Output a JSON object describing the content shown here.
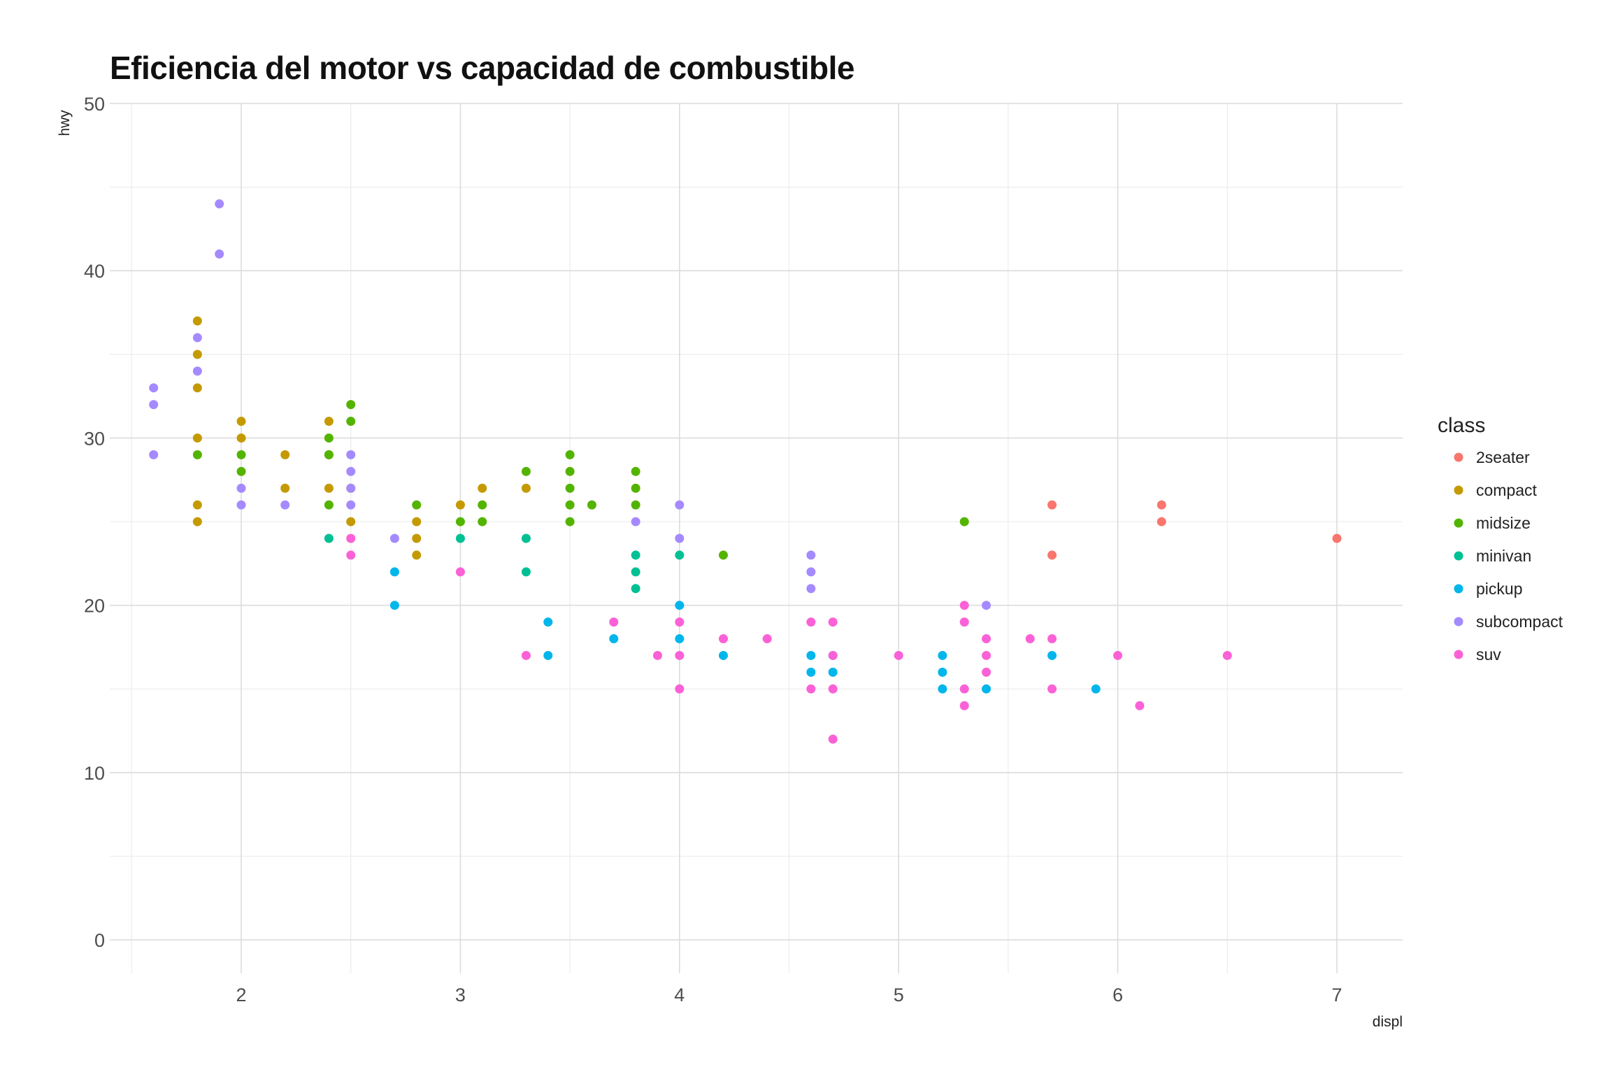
{
  "chart_data": {
    "type": "scatter",
    "title": "Eficiencia del motor vs capacidad de combustible",
    "xlabel": "displ",
    "ylabel": "hwy",
    "xlim": [
      1.4,
      7.3
    ],
    "ylim": [
      -2,
      50
    ],
    "x_ticks": [
      2,
      3,
      4,
      5,
      6,
      7
    ],
    "y_ticks": [
      0,
      10,
      20,
      30,
      40,
      50
    ],
    "grid": true,
    "legend": {
      "title": "class",
      "position": "right"
    },
    "series": [
      {
        "name": "2seater",
        "color": "#F8766D",
        "points": [
          [
            5.7,
            26
          ],
          [
            5.7,
            23
          ],
          [
            6.2,
            26
          ],
          [
            6.2,
            25
          ],
          [
            7.0,
            24
          ]
        ]
      },
      {
        "name": "compact",
        "color": "#C49A00",
        "points": [
          [
            1.8,
            37
          ],
          [
            1.8,
            35
          ],
          [
            1.8,
            33
          ],
          [
            1.8,
            30
          ],
          [
            1.8,
            26
          ],
          [
            1.8,
            25
          ],
          [
            2.0,
            31
          ],
          [
            2.0,
            30
          ],
          [
            2.2,
            29
          ],
          [
            2.2,
            27
          ],
          [
            2.4,
            31
          ],
          [
            2.4,
            29
          ],
          [
            2.4,
            27
          ],
          [
            2.5,
            27
          ],
          [
            2.5,
            25
          ],
          [
            2.8,
            25
          ],
          [
            2.8,
            24
          ],
          [
            2.8,
            23
          ],
          [
            3.0,
            26
          ],
          [
            3.1,
            27
          ],
          [
            3.3,
            27
          ]
        ]
      },
      {
        "name": "midsize",
        "color": "#53B400",
        "points": [
          [
            1.8,
            29
          ],
          [
            2.0,
            29
          ],
          [
            2.0,
            28
          ],
          [
            2.4,
            30
          ],
          [
            2.4,
            29
          ],
          [
            2.4,
            26
          ],
          [
            2.5,
            32
          ],
          [
            2.5,
            31
          ],
          [
            2.8,
            26
          ],
          [
            3.0,
            25
          ],
          [
            3.1,
            26
          ],
          [
            3.1,
            25
          ],
          [
            3.3,
            28
          ],
          [
            3.5,
            29
          ],
          [
            3.5,
            28
          ],
          [
            3.5,
            27
          ],
          [
            3.5,
            26
          ],
          [
            3.5,
            25
          ],
          [
            3.6,
            26
          ],
          [
            3.8,
            28
          ],
          [
            3.8,
            27
          ],
          [
            3.8,
            26
          ],
          [
            4.2,
            23
          ],
          [
            5.3,
            25
          ]
        ]
      },
      {
        "name": "minivan",
        "color": "#00C094",
        "points": [
          [
            2.4,
            24
          ],
          [
            3.0,
            24
          ],
          [
            3.3,
            24
          ],
          [
            3.3,
            22
          ],
          [
            3.8,
            23
          ],
          [
            3.8,
            22
          ],
          [
            3.8,
            21
          ],
          [
            4.0,
            23
          ]
        ]
      },
      {
        "name": "pickup",
        "color": "#00B6EB",
        "points": [
          [
            2.7,
            22
          ],
          [
            2.7,
            20
          ],
          [
            3.4,
            19
          ],
          [
            3.4,
            17
          ],
          [
            3.7,
            18
          ],
          [
            4.0,
            20
          ],
          [
            4.0,
            18
          ],
          [
            4.2,
            17
          ],
          [
            4.6,
            17
          ],
          [
            4.6,
            16
          ],
          [
            4.7,
            17
          ],
          [
            4.7,
            16
          ],
          [
            5.2,
            17
          ],
          [
            5.2,
            16
          ],
          [
            5.2,
            15
          ],
          [
            5.4,
            15
          ],
          [
            5.7,
            17
          ],
          [
            5.9,
            15
          ]
        ]
      },
      {
        "name": "subcompact",
        "color": "#A58AFF",
        "points": [
          [
            1.6,
            33
          ],
          [
            1.6,
            32
          ],
          [
            1.6,
            29
          ],
          [
            1.8,
            36
          ],
          [
            1.8,
            34
          ],
          [
            1.9,
            44
          ],
          [
            1.9,
            41
          ],
          [
            2.0,
            27
          ],
          [
            2.0,
            26
          ],
          [
            2.2,
            26
          ],
          [
            2.5,
            29
          ],
          [
            2.5,
            28
          ],
          [
            2.5,
            27
          ],
          [
            2.5,
            26
          ],
          [
            2.7,
            24
          ],
          [
            3.8,
            25
          ],
          [
            4.0,
            26
          ],
          [
            4.0,
            24
          ],
          [
            4.6,
            23
          ],
          [
            4.6,
            22
          ],
          [
            4.6,
            21
          ],
          [
            5.4,
            20
          ]
        ]
      },
      {
        "name": "suv",
        "color": "#FB61D7",
        "points": [
          [
            2.5,
            24
          ],
          [
            2.5,
            23
          ],
          [
            3.0,
            22
          ],
          [
            3.3,
            17
          ],
          [
            3.7,
            19
          ],
          [
            3.9,
            17
          ],
          [
            4.0,
            19
          ],
          [
            4.0,
            17
          ],
          [
            4.0,
            15
          ],
          [
            4.2,
            18
          ],
          [
            4.4,
            18
          ],
          [
            4.6,
            19
          ],
          [
            4.6,
            15
          ],
          [
            4.7,
            19
          ],
          [
            4.7,
            17
          ],
          [
            4.7,
            15
          ],
          [
            4.7,
            12
          ],
          [
            5.0,
            17
          ],
          [
            5.3,
            20
          ],
          [
            5.3,
            19
          ],
          [
            5.3,
            15
          ],
          [
            5.3,
            14
          ],
          [
            5.4,
            18
          ],
          [
            5.4,
            17
          ],
          [
            5.4,
            16
          ],
          [
            5.6,
            18
          ],
          [
            5.7,
            18
          ],
          [
            5.7,
            15
          ],
          [
            6.0,
            17
          ],
          [
            6.1,
            14
          ],
          [
            6.5,
            17
          ]
        ]
      }
    ]
  }
}
